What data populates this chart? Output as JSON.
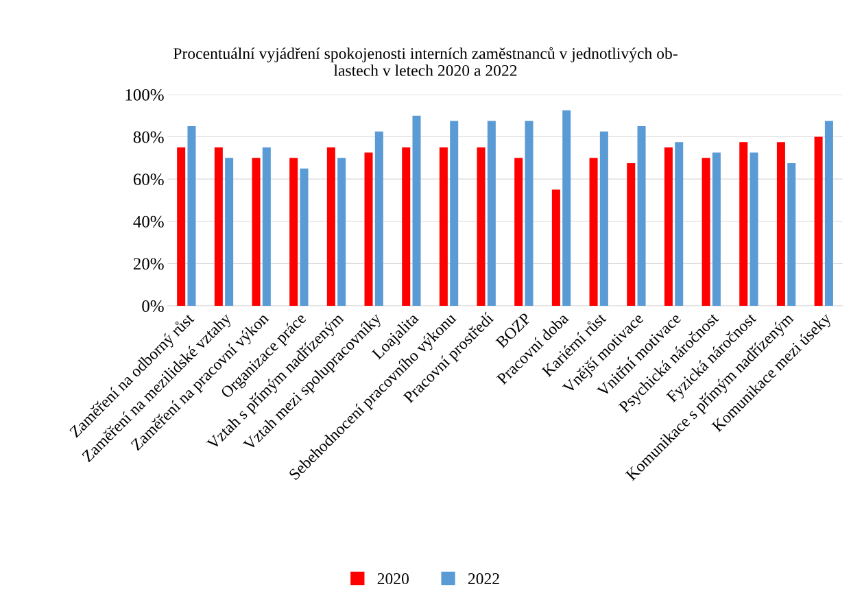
{
  "chart_data": {
    "type": "bar",
    "title": "Procentuální vyjádření spokojenosti interních zaměstnanců v jednotlivých ob-\nlastech v letech 2020 a 2022",
    "categories": [
      "Zaměření na odborný růst",
      "Zaměření na mezilidské vztahy",
      "Zaměření na pracovní výkon",
      "Organizace práce",
      "Vztah s přímým nadřízeným",
      "Vztah mezi spolupracovníky",
      "Loajalita",
      "Sebehodnocení pracovního výkonu",
      "Pracovní prostředí",
      "BOZP",
      "Pracovní doba",
      "Kariérní růst",
      "Vnější motivace",
      "Vnitřní motivace",
      "Psychická náročnost",
      "Fyzická náročnost",
      "Komunikace s přímým nadřízeným",
      "Komunikace mezi úseky"
    ],
    "series": [
      {
        "name": "2020",
        "color": "#ff0000",
        "values": [
          75,
          75,
          70,
          70,
          75,
          72.5,
          75,
          75,
          75,
          70,
          55,
          70,
          67.5,
          75,
          70,
          77.5,
          77.5,
          80
        ]
      },
      {
        "name": "2022",
        "color": "#5b9bd5",
        "values": [
          85,
          70,
          75,
          65,
          70,
          82.5,
          90,
          87.5,
          87.5,
          87.5,
          92.5,
          82.5,
          85,
          77.5,
          72.5,
          72.5,
          67.5,
          87.5
        ]
      }
    ],
    "ylim": [
      0,
      100
    ],
    "yticks": [
      {
        "value": 0,
        "label": "0%"
      },
      {
        "value": 20,
        "label": "20%"
      },
      {
        "value": 40,
        "label": "40%"
      },
      {
        "value": 60,
        "label": "60%"
      },
      {
        "value": 80,
        "label": "80%"
      },
      {
        "value": 100,
        "label": "100%"
      }
    ],
    "grid": "y",
    "legend": "bottom"
  }
}
